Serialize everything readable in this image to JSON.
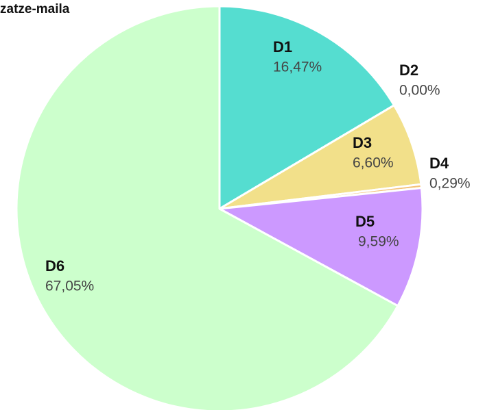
{
  "chart_data": {
    "type": "pie",
    "title": "zatze-maila",
    "categories": [
      "D1",
      "D2",
      "D3",
      "D4",
      "D5",
      "D6"
    ],
    "values": [
      16.47,
      0,
      6.6,
      0.29,
      9.59,
      67.05
    ],
    "value_labels": [
      "16,47%",
      "0,00%",
      "6,60%",
      "0,29%",
      "9,59%",
      "67,05%"
    ],
    "colors": [
      "#55ddd0",
      "#ffb366",
      "#f2e08a",
      "#f4c27a",
      "#cc99ff",
      "#ccffcc"
    ]
  }
}
